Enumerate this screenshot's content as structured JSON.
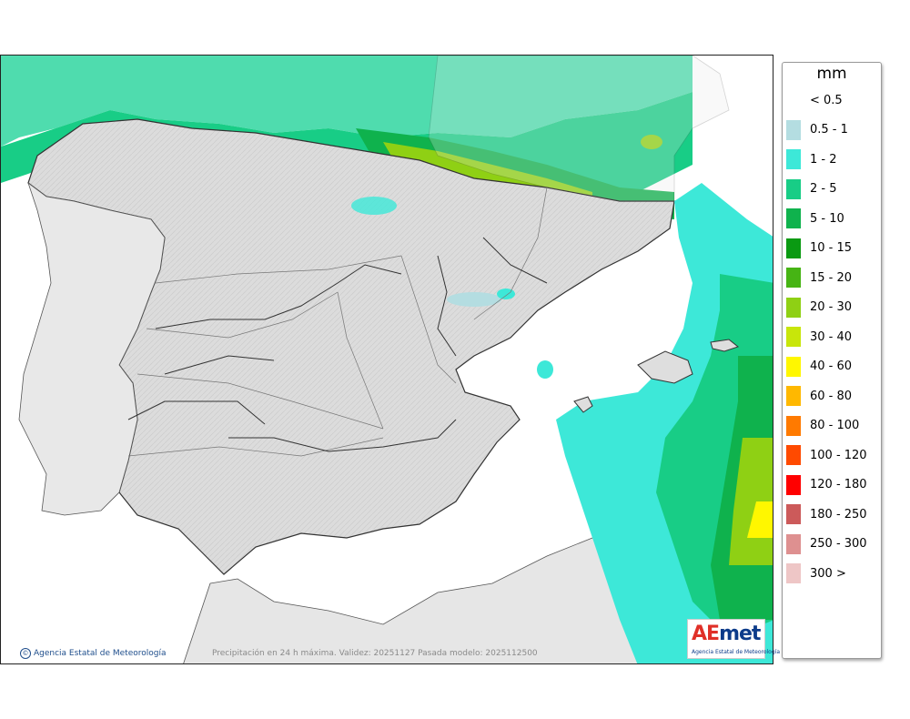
{
  "legend": {
    "unit": "mm",
    "items": [
      {
        "label": "< 0.5",
        "color": ""
      },
      {
        "label": "0.5 - 1",
        "color": "#b4dde1"
      },
      {
        "label": "1 - 2",
        "color": "#3de8d8"
      },
      {
        "label": "2 - 5",
        "color": "#18cd86"
      },
      {
        "label": "5 - 10",
        "color": "#0fb24d"
      },
      {
        "label": "10 - 15",
        "color": "#0a9a12"
      },
      {
        "label": "15 - 20",
        "color": "#46b414"
      },
      {
        "label": "20 - 30",
        "color": "#8fd014"
      },
      {
        "label": "30 - 40",
        "color": "#c8e60a"
      },
      {
        "label": "40 - 60",
        "color": "#fff700"
      },
      {
        "label": "60 - 80",
        "color": "#ffb800"
      },
      {
        "label": "80 - 100",
        "color": "#ff7a00"
      },
      {
        "label": "100 - 120",
        "color": "#ff4a00"
      },
      {
        "label": "120 - 180",
        "color": "#ff0000"
      },
      {
        "label": "180 - 250",
        "color": "#cc5a5a"
      },
      {
        "label": "250 - 300",
        "color": "#de9090"
      },
      {
        "label": "300 >",
        "color": "#eec6c6"
      }
    ]
  },
  "footer": {
    "credit": "Agencia Estatal de Meteorología",
    "caption": "Precipitación en 24 h máxima. Validez: 20251127 Pasada modelo: 2025112500"
  },
  "logo": {
    "wordmark_ae": "AE",
    "wordmark_rest": "met",
    "subtitle": "Agencia Estatal de Meteorología"
  },
  "colors": {
    "land": "#dedede",
    "sea": "#ffffff",
    "borders": "#555555"
  }
}
